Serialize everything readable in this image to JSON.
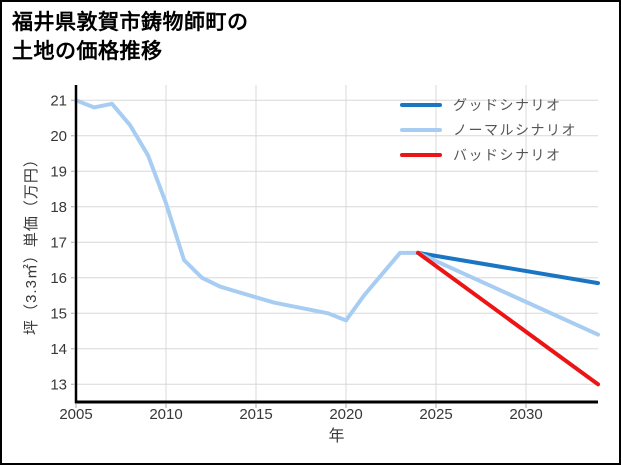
{
  "card": {
    "title_lines": [
      "福井県敦賀市鋳物師町の",
      "土地の価格推移"
    ]
  },
  "chart_data": {
    "type": "line",
    "title": "福井県敦賀市鋳物師町の土地の価格推移",
    "xlabel": "年",
    "ylabel": "坪（3.3㎡）単価（万円）",
    "xlim": [
      2005,
      2034
    ],
    "ylim": [
      12.5,
      21.43
    ],
    "x_ticks": [
      2005,
      2010,
      2015,
      2020,
      2025,
      2030
    ],
    "y_ticks": [
      13,
      14,
      15,
      16,
      17,
      18,
      19,
      20,
      21
    ],
    "grid": true,
    "legend_position": "top-right",
    "colors": {
      "grid": "#d8d8d8",
      "axis": "#000000",
      "tick_label": "#383838"
    },
    "series": [
      {
        "id": "actual",
        "label": "",
        "in_legend": false,
        "color": "#a8cdf2",
        "width": 4,
        "x": [
          2005,
          2006,
          2007,
          2008,
          2009,
          2010,
          2011,
          2012,
          2013,
          2014,
          2015,
          2016,
          2017,
          2018,
          2019,
          2020,
          2021,
          2022,
          2023,
          2024
        ],
        "values": [
          21.0,
          20.8,
          20.9,
          20.3,
          19.45,
          18.1,
          16.5,
          16.0,
          15.75,
          15.6,
          15.45,
          15.3,
          15.2,
          15.1,
          15.0,
          14.8,
          15.5,
          16.1,
          16.7,
          16.7
        ]
      },
      {
        "id": "good-scenario",
        "label": "グッドシナリオ",
        "in_legend": true,
        "color": "#1a76c3",
        "width": 4,
        "x": [
          2024,
          2034
        ],
        "values": [
          16.7,
          15.85
        ]
      },
      {
        "id": "normal-scenario",
        "label": "ノーマルシナリオ",
        "in_legend": true,
        "color": "#a8cdf2",
        "width": 4,
        "x": [
          2024,
          2034
        ],
        "values": [
          16.7,
          14.4
        ]
      },
      {
        "id": "bad-scenario",
        "label": "バッドシナリオ",
        "in_legend": true,
        "color": "#ec1515",
        "width": 4,
        "x": [
          2024,
          2034
        ],
        "values": [
          16.7,
          13.0
        ]
      }
    ]
  }
}
